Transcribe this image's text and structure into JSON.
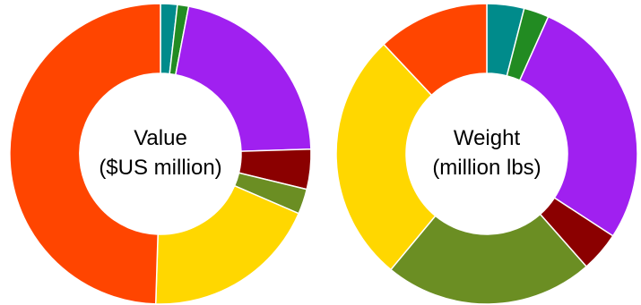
{
  "chart_data": [
    {
      "type": "pie",
      "donut": true,
      "center_label_lines": [
        "Value",
        "($US million)"
      ],
      "start_angle_deg": 0,
      "direction": "clockwise",
      "slices": [
        {
          "value": 1.8,
          "color": "#008B8B"
        },
        {
          "value": 1.2,
          "color": "#228B22"
        },
        {
          "value": 21.5,
          "color": "#A020F0"
        },
        {
          "value": 4.3,
          "color": "#8B0000"
        },
        {
          "value": 2.7,
          "color": "#6B8E23"
        },
        {
          "value": 19.0,
          "color": "#FFD700"
        },
        {
          "value": 49.5,
          "color": "#FF4500"
        }
      ]
    },
    {
      "type": "pie",
      "donut": true,
      "center_label_lines": [
        "Weight",
        "(million lbs)"
      ],
      "start_angle_deg": 0,
      "direction": "clockwise",
      "slices": [
        {
          "value": 4.0,
          "color": "#008B8B"
        },
        {
          "value": 2.7,
          "color": "#228B22"
        },
        {
          "value": 27.5,
          "color": "#A020F0"
        },
        {
          "value": 4.3,
          "color": "#8B0000"
        },
        {
          "value": 22.5,
          "color": "#6B8E23"
        },
        {
          "value": 27.0,
          "color": "#FFD700"
        },
        {
          "value": 12.0,
          "color": "#FF4500"
        }
      ]
    }
  ]
}
